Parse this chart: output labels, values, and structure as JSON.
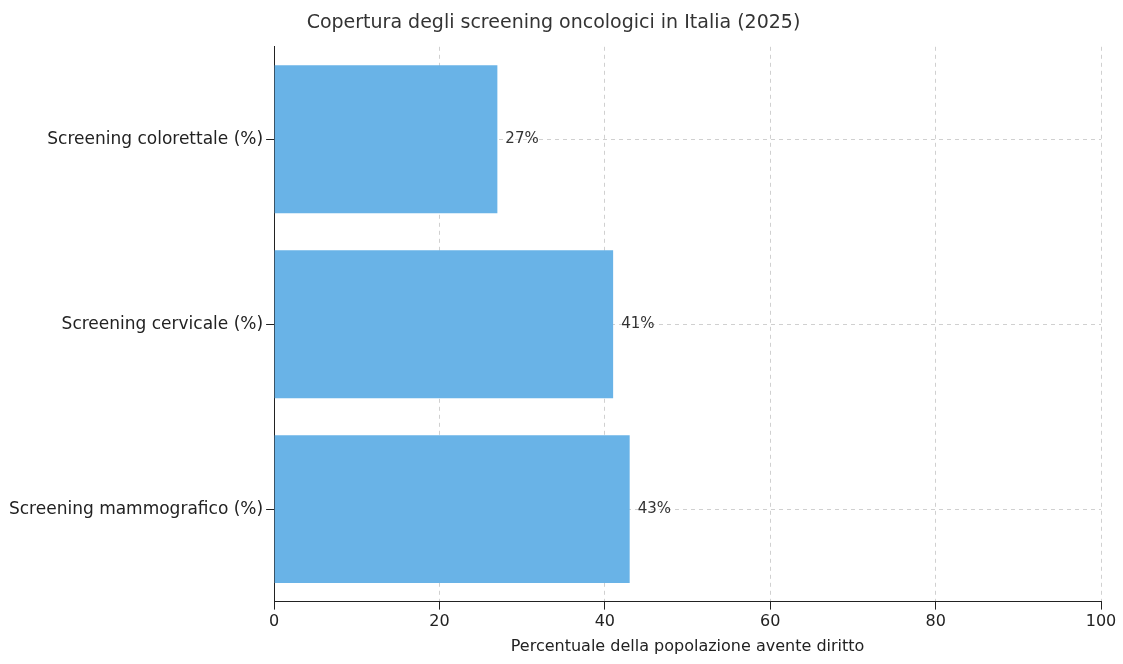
{
  "chart_data": {
    "type": "bar",
    "orientation": "horizontal",
    "title": "Copertura degli screening oncologici in Italia (2025)",
    "xlabel": "Percentuale della popolazione avente diritto",
    "categories": [
      "Screening colorettale (%)",
      "Screening cervicale (%)",
      "Screening mammografico (%)"
    ],
    "values": [
      27,
      41,
      43
    ],
    "value_labels": [
      "27%",
      "41%",
      "43%"
    ],
    "color": "#69b3e7",
    "xlim": [
      0,
      100
    ],
    "xticks": [
      0,
      20,
      40,
      60,
      80,
      100
    ],
    "grid": true,
    "legend": false
  }
}
